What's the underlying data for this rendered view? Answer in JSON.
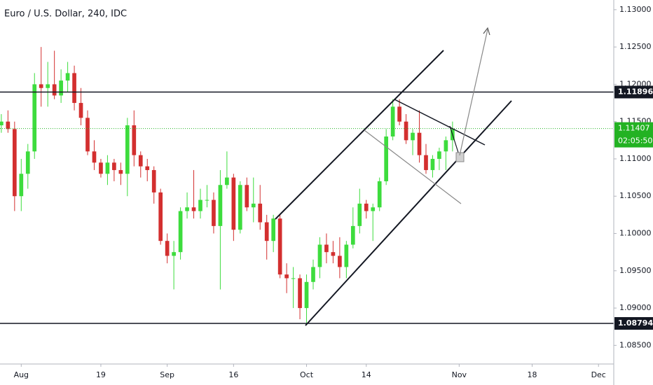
{
  "chart_data": {
    "type": "candlestick",
    "title": "Euro / U.S. Dollar, 240, IDC",
    "up_color": "#3ddc3d",
    "down_color": "#d32f2f",
    "open": [
      1.1145,
      1.115,
      1.114,
      1.105,
      1.108,
      1.111,
      1.12,
      1.1195,
      1.12,
      1.1185,
      1.1205,
      1.1215,
      1.1175,
      1.1155,
      1.111,
      1.1095,
      1.108,
      1.1095,
      1.1085,
      1.108,
      1.1145,
      1.1105,
      1.109,
      1.1085,
      1.1055,
      1.099,
      1.097,
      1.0975,
      1.103,
      1.1035,
      1.103,
      1.1045,
      1.1045,
      1.101,
      1.1065,
      1.1075,
      1.1005,
      1.1065,
      1.1035,
      1.104,
      1.1015,
      1.099,
      1.102,
      1.0945,
      1.094,
      1.094,
      1.09,
      1.0935,
      1.0955,
      1.0985,
      1.0975,
      1.097,
      1.0955,
      1.0985,
      1.101,
      1.104,
      1.103,
      1.1035,
      1.107,
      1.113,
      1.117,
      1.115,
      1.1125,
      1.1135,
      1.1105,
      1.1085,
      1.11,
      1.111,
      1.1125
    ],
    "high": [
      1.116,
      1.1165,
      1.115,
      1.11,
      1.112,
      1.1215,
      1.125,
      1.123,
      1.1245,
      1.122,
      1.123,
      1.1225,
      1.1195,
      1.1165,
      1.1125,
      1.11,
      1.1105,
      1.11,
      1.1095,
      1.1155,
      1.1165,
      1.111,
      1.11,
      1.109,
      1.106,
      1.1,
      1.099,
      1.1035,
      1.1055,
      1.1085,
      1.106,
      1.1065,
      1.1055,
      1.1085,
      1.111,
      1.108,
      1.107,
      1.1075,
      1.1075,
      1.1065,
      1.1025,
      1.1025,
      1.1025,
      1.096,
      1.0955,
      1.0945,
      1.0945,
      1.0965,
      1.0995,
      1.1,
      1.099,
      1.0995,
      1.099,
      1.1035,
      1.106,
      1.1045,
      1.104,
      1.1075,
      1.114,
      1.118,
      1.118,
      1.116,
      1.114,
      1.1165,
      1.112,
      1.1105,
      1.1115,
      1.113,
      1.115
    ],
    "low": [
      1.1135,
      1.1135,
      1.103,
      1.103,
      1.106,
      1.11,
      1.117,
      1.117,
      1.118,
      1.1175,
      1.119,
      1.1165,
      1.1145,
      1.1105,
      1.1085,
      1.1075,
      1.1065,
      1.107,
      1.1065,
      1.105,
      1.109,
      1.1075,
      1.107,
      1.104,
      1.0985,
      1.096,
      1.0925,
      1.0965,
      1.102,
      1.102,
      1.102,
      1.1035,
      1.1,
      1.0925,
      1.106,
      1.099,
      1.1,
      1.103,
      1.1015,
      1.1005,
      1.0965,
      1.0975,
      1.094,
      1.092,
      1.09,
      1.0885,
      1.088,
      1.0925,
      1.094,
      1.096,
      1.096,
      1.094,
      1.094,
      1.098,
      1.1,
      1.102,
      1.099,
      1.103,
      1.1065,
      1.1125,
      1.1145,
      1.112,
      1.1105,
      1.1095,
      1.108,
      1.1075,
      1.1085,
      1.1085,
      1.111
    ],
    "close": [
      1.115,
      1.114,
      1.105,
      1.108,
      1.111,
      1.12,
      1.1195,
      1.12,
      1.1185,
      1.1205,
      1.1215,
      1.1175,
      1.1155,
      1.111,
      1.1095,
      1.108,
      1.1095,
      1.1085,
      1.108,
      1.1145,
      1.1105,
      1.109,
      1.1085,
      1.1055,
      1.099,
      1.097,
      1.0975,
      1.103,
      1.1035,
      1.103,
      1.1045,
      1.1045,
      1.101,
      1.1065,
      1.1075,
      1.1005,
      1.1065,
      1.1035,
      1.104,
      1.1015,
      1.099,
      1.102,
      1.0945,
      1.094,
      1.094,
      1.09,
      1.0935,
      1.0955,
      1.0985,
      1.0975,
      1.097,
      1.0955,
      1.0985,
      1.101,
      1.104,
      1.103,
      1.1035,
      1.107,
      1.113,
      1.117,
      1.115,
      1.1125,
      1.1135,
      1.1105,
      1.1085,
      1.11,
      1.111,
      1.1125,
      1.114
    ],
    "xlim": [
      -0.2,
      92.3
    ],
    "xticks": [
      {
        "value": 3,
        "label": "Aug"
      },
      {
        "value": 15,
        "label": "19"
      },
      {
        "value": 25,
        "label": "Sep"
      },
      {
        "value": 35,
        "label": "16"
      },
      {
        "value": 46,
        "label": "Oct"
      },
      {
        "value": 55,
        "label": "14"
      },
      {
        "value": 69,
        "label": "Nov"
      },
      {
        "value": 80,
        "label": "18"
      },
      {
        "value": 90,
        "label": "Dec"
      }
    ],
    "ylim": [
      1.0825,
      1.1313
    ],
    "yticks": [
      {
        "value": 1.085,
        "label": "1.08500"
      },
      {
        "value": 1.09,
        "label": "1.09000"
      },
      {
        "value": 1.095,
        "label": "1.09500"
      },
      {
        "value": 1.1,
        "label": "1.10000"
      },
      {
        "value": 1.105,
        "label": "1.10500"
      },
      {
        "value": 1.11,
        "label": "1.11000"
      },
      {
        "value": 1.115,
        "label": "1.11500"
      },
      {
        "value": 1.12,
        "label": "1.12000"
      },
      {
        "value": 1.125,
        "label": "1.12500"
      },
      {
        "value": 1.13,
        "label": "1.13000"
      }
    ],
    "price_lines": [
      {
        "value": 1.11896,
        "color": "#131722"
      },
      {
        "value": 1.08794,
        "color": "#131722"
      }
    ],
    "last_price": {
      "value": 1.11407,
      "color": "#23b223",
      "countdown": "02:05:50"
    }
  }
}
